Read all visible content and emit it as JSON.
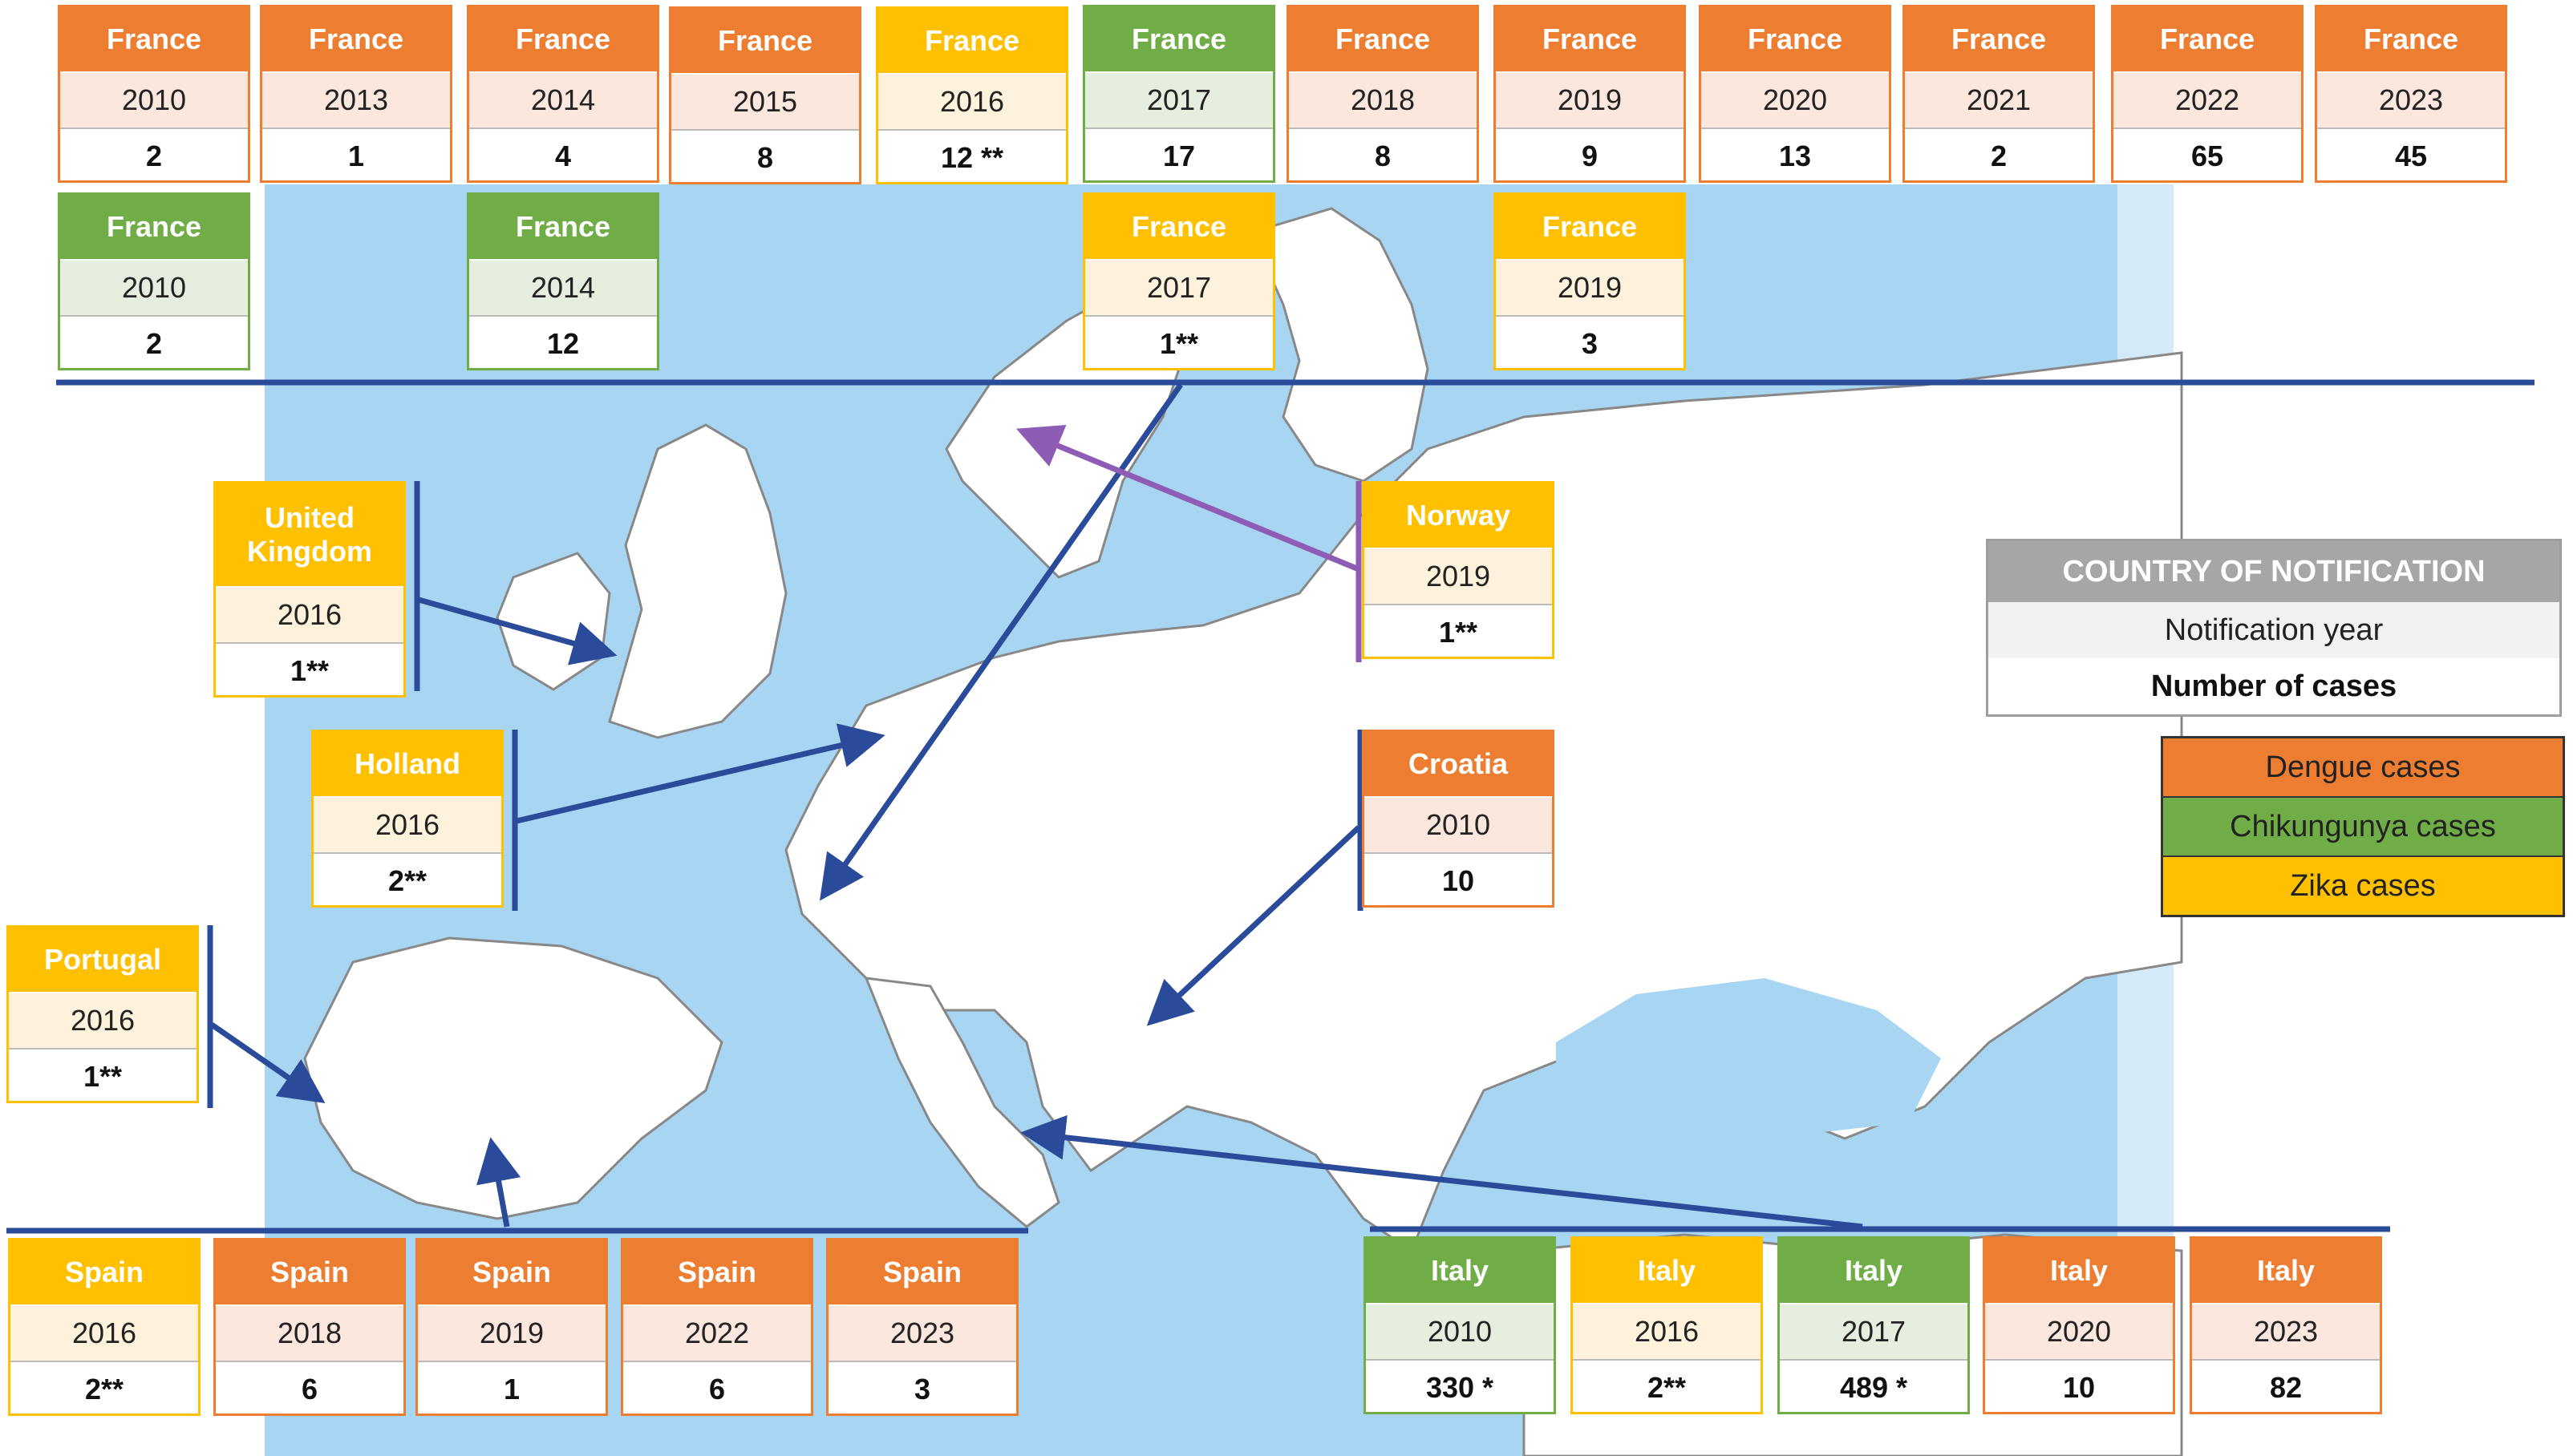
{
  "colors": {
    "dengue": "#ed7d31",
    "chikungunya": "#70ad47",
    "zika": "#ffc000",
    "sea": "#a8d5f2",
    "line": "#2a4a9a",
    "norway_line": "#8e5bb5"
  },
  "legend": {
    "header": "COUNTRY OF NOTIFICATION",
    "year_label": "Notification year",
    "cases_label": "Number  of cases",
    "dengue": "Dengue cases",
    "chikungunya": "Chikungunya cases",
    "zika": "Zika cases"
  },
  "cards": [
    {
      "country": "France",
      "year": "2010",
      "cases": "2",
      "type": "dengue"
    },
    {
      "country": "France",
      "year": "2013",
      "cases": "1",
      "type": "dengue"
    },
    {
      "country": "France",
      "year": "2014",
      "cases": "4",
      "type": "dengue"
    },
    {
      "country": "France",
      "year": "2015",
      "cases": "8",
      "type": "dengue"
    },
    {
      "country": "France",
      "year": "2016",
      "cases": "12 **",
      "type": "zika"
    },
    {
      "country": "France",
      "year": "2017",
      "cases": "17",
      "type": "chik"
    },
    {
      "country": "France",
      "year": "2018",
      "cases": "8",
      "type": "dengue"
    },
    {
      "country": "France",
      "year": "2019",
      "cases": "9",
      "type": "dengue"
    },
    {
      "country": "France",
      "year": "2020",
      "cases": "13",
      "type": "dengue"
    },
    {
      "country": "France",
      "year": "2021",
      "cases": "2",
      "type": "dengue"
    },
    {
      "country": "France",
      "year": "2022",
      "cases": "65",
      "type": "dengue"
    },
    {
      "country": "France",
      "year": "2023",
      "cases": "45",
      "type": "dengue"
    },
    {
      "country": "France",
      "year": "2010",
      "cases": "2",
      "type": "chik"
    },
    {
      "country": "France",
      "year": "2014",
      "cases": "12",
      "type": "chik"
    },
    {
      "country": "France",
      "year": "2017",
      "cases": "1**",
      "type": "zika"
    },
    {
      "country": "France",
      "year": "2019",
      "cases": "3",
      "type": "zika"
    },
    {
      "country": "United Kingdom",
      "year": "2016",
      "cases": "1**",
      "type": "zika"
    },
    {
      "country": "Holland",
      "year": "2016",
      "cases": "2**",
      "type": "zika"
    },
    {
      "country": "Portugal",
      "year": "2016",
      "cases": "1**",
      "type": "zika"
    },
    {
      "country": "Norway",
      "year": "2019",
      "cases": "1**",
      "type": "zika"
    },
    {
      "country": "Croatia",
      "year": "2010",
      "cases": "10",
      "type": "dengue"
    },
    {
      "country": "Spain",
      "year": "2016",
      "cases": "2**",
      "type": "zika"
    },
    {
      "country": "Spain",
      "year": "2018",
      "cases": "6",
      "type": "dengue"
    },
    {
      "country": "Spain",
      "year": "2019",
      "cases": "1",
      "type": "dengue"
    },
    {
      "country": "Spain",
      "year": "2022",
      "cases": "6",
      "type": "dengue"
    },
    {
      "country": "Spain",
      "year": "2023",
      "cases": "3",
      "type": "dengue"
    },
    {
      "country": "Italy",
      "year": "2010",
      "cases": "330 *",
      "type": "chik"
    },
    {
      "country": "Italy",
      "year": "2016",
      "cases": "2**",
      "type": "zika"
    },
    {
      "country": "Italy",
      "year": "2017",
      "cases": "489 *",
      "type": "chik"
    },
    {
      "country": "Italy",
      "year": "2020",
      "cases": "10",
      "type": "dengue"
    },
    {
      "country": "Italy",
      "year": "2023",
      "cases": "82",
      "type": "dengue"
    }
  ]
}
